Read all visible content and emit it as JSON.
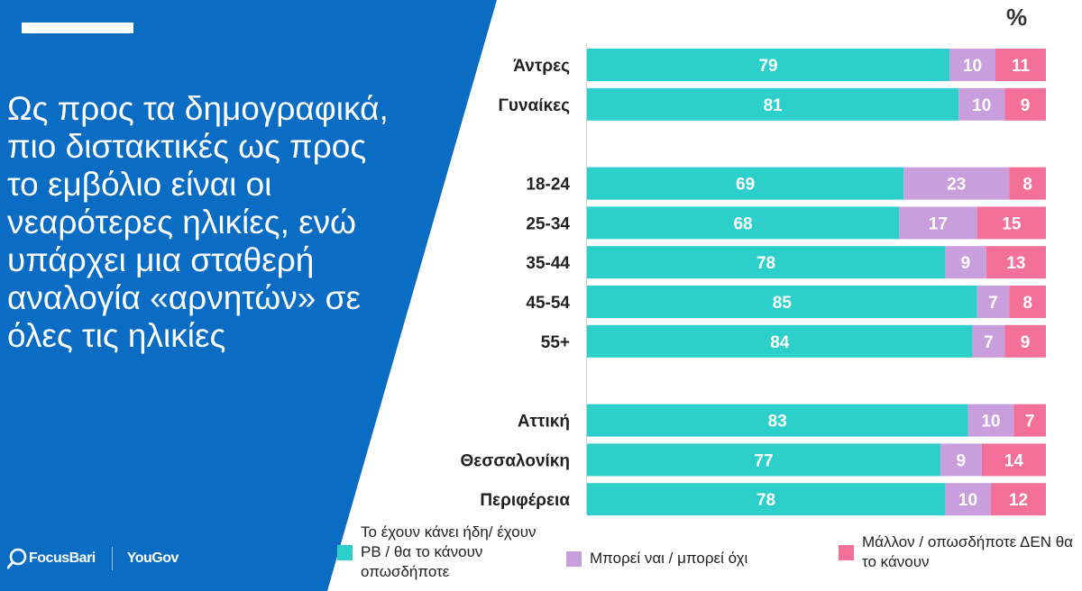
{
  "headline": "Ως προς τα δημογραφικά, πιο διστακτικές ως προς το εμβόλιο είναι οι νεαρότερες ηλικίες, ενώ υπάρχει μια σταθερή αναλογία «αρνητών» σε όλες τις ηλικίες",
  "unit_label": "%",
  "logos": {
    "focusbari": "FocusBari",
    "yougov": "YouGov"
  },
  "colors": {
    "blue_panel": "#0a6cc2",
    "teal": "#2ccfca",
    "lilac": "#c89fdc",
    "pink": "#f27099"
  },
  "legend": [
    {
      "label": "Το έχουν κάνει ήδη/ έχουν ΡΒ / θα το κάνουν οπωσδήποτε",
      "color": "#2ccfca"
    },
    {
      "label": "Μπορεί ναι / μπορεί όχι",
      "color": "#c89fdc"
    },
    {
      "label": "Μάλλον / οπωσδήποτε ΔΕΝ θα το κάνουν",
      "color": "#f27099"
    }
  ],
  "chart_data": {
    "type": "bar",
    "orientation": "horizontal",
    "stacked": true,
    "unit": "%",
    "categories": [
      "Άντρες",
      "Γυναίκες",
      "18-24",
      "25-34",
      "35-44",
      "45-54",
      "55+",
      "Αττική",
      "Θεσσαλονίκη",
      "Περιφέρεια"
    ],
    "groups": [
      [
        "Άντρες",
        "Γυναίκες"
      ],
      [
        "18-24",
        "25-34",
        "35-44",
        "45-54",
        "55+"
      ],
      [
        "Αττική",
        "Θεσσαλονίκη",
        "Περιφέρεια"
      ]
    ],
    "series": [
      {
        "name": "Το έχουν κάνει ήδη/ έχουν ΡΒ / θα το κάνουν οπωσδήποτε",
        "values": [
          79,
          81,
          69,
          68,
          78,
          85,
          84,
          83,
          77,
          78
        ]
      },
      {
        "name": "Μπορεί ναι / μπορεί όχι",
        "values": [
          10,
          10,
          23,
          17,
          9,
          7,
          7,
          10,
          9,
          10
        ]
      },
      {
        "name": "Μάλλον / οπωσδήποτε ΔΕΝ θα το κάνουν",
        "values": [
          11,
          9,
          8,
          15,
          13,
          8,
          9,
          7,
          14,
          12
        ]
      }
    ],
    "xlim": [
      0,
      100
    ],
    "legend_position": "bottom",
    "grid": false
  }
}
